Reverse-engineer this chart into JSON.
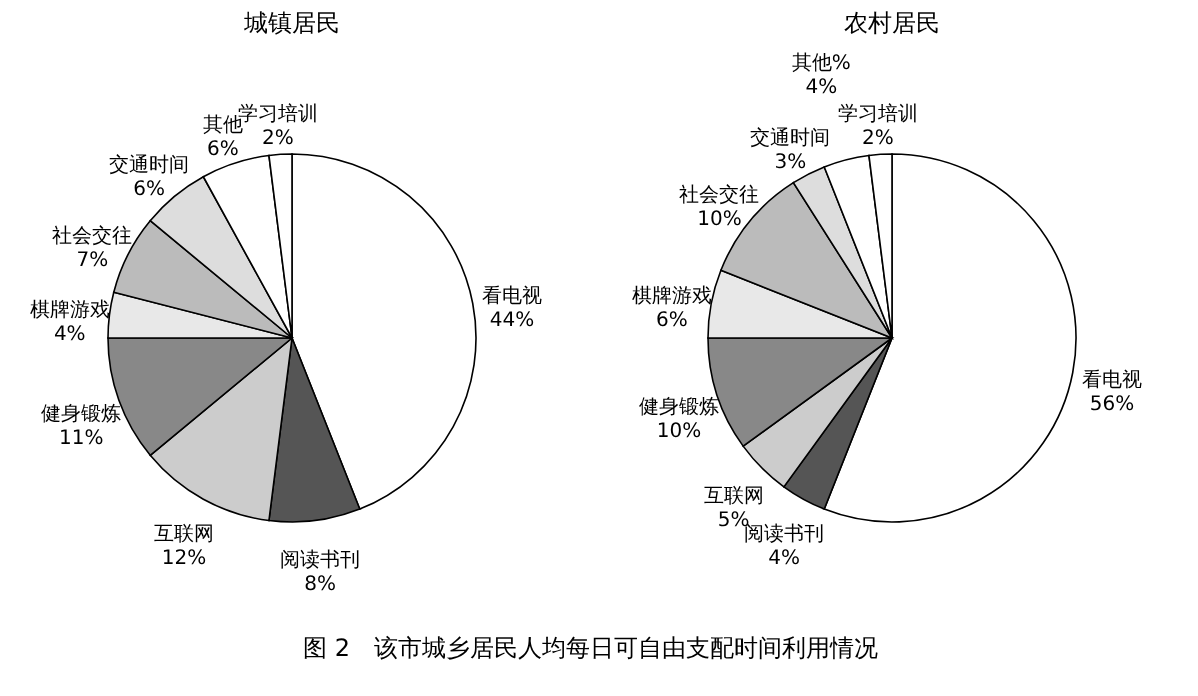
{
  "chart_data": [
    {
      "type": "pie",
      "title": "城镇居民",
      "categories": [
        "看电视",
        "阅读书刊",
        "互联网",
        "健身锻炼",
        "棋牌游戏",
        "社会交往",
        "交通时间",
        "其他",
        "学习培训"
      ],
      "values": [
        44,
        8,
        12,
        11,
        4,
        7,
        6,
        6,
        2
      ],
      "value_labels": [
        "44%",
        "8%",
        "12%",
        "11%",
        "4%",
        "7%",
        "6%",
        "6%",
        "2%"
      ],
      "colors": [
        "#ffffff",
        "#555555",
        "#cccccc",
        "#888888",
        "#e8e8e8",
        "#bbbbbb",
        "#dddddd",
        "#ffffff",
        "#ffffff"
      ],
      "legend": false,
      "annotations": [
        "图 2　该市城乡居民人均每日可自由支配时间利用情况"
      ]
    },
    {
      "type": "pie",
      "title": "农村居民",
      "categories": [
        "看电视",
        "阅读书刊",
        "互联网",
        "健身锻炼",
        "棋牌游戏",
        "社会交往",
        "交通时间",
        "其他%",
        "学习培训"
      ],
      "values": [
        56,
        4,
        5,
        10,
        6,
        10,
        3,
        4,
        2
      ],
      "value_labels": [
        "56%",
        "4%",
        "5%",
        "10%",
        "6%",
        "10%",
        "3%",
        "4%",
        "2%"
      ],
      "colors": [
        "#ffffff",
        "#555555",
        "#cccccc",
        "#888888",
        "#e8e8e8",
        "#bbbbbb",
        "#dddddd",
        "#ffffff",
        "#ffffff"
      ],
      "legend": false
    }
  ]
}
